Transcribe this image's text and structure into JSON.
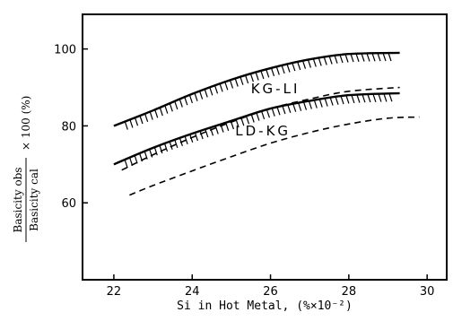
{
  "chart_data": {
    "type": "line",
    "x_label": "Si in Hot Metal, (%×10⁻²)",
    "y_label": {
      "numerator": "Basicity obs",
      "denominator": "Basicity cal",
      "suffix": "× 100 (%)"
    },
    "x_ticks": [
      "22",
      "24",
      "26",
      "28",
      "30"
    ],
    "y_ticks": [
      "60",
      "80",
      "100"
    ],
    "xlim": [
      21.2,
      30.5
    ],
    "ylim": [
      40,
      109
    ],
    "grid": false,
    "annotations": [
      {
        "text": "KG-LI",
        "x": 25.5,
        "y": 88.5
      },
      {
        "text": "LD-KG",
        "x": 25.1,
        "y": 77.5
      }
    ],
    "series": [
      {
        "style": "solid-hatched",
        "x": [
          22,
          23,
          24,
          25,
          26,
          27,
          28,
          29.3
        ],
        "y": [
          80,
          84,
          88.3,
          92,
          95,
          97.3,
          98.7,
          99
        ]
      },
      {
        "style": "solid-hatched",
        "x": [
          22,
          23,
          24,
          25,
          26,
          27,
          28,
          29.3
        ],
        "y": [
          70,
          74.3,
          78,
          81.3,
          84.5,
          86.5,
          88,
          88.5
        ]
      },
      {
        "style": "dashed",
        "x": [
          22.2,
          23,
          24,
          25,
          26,
          27,
          28,
          29.3
        ],
        "y": [
          68.5,
          72.5,
          77,
          81,
          84.5,
          87,
          89,
          90
        ]
      },
      {
        "style": "dashed",
        "x": [
          22.4,
          23,
          24,
          25,
          26,
          27,
          28,
          29,
          29.8
        ],
        "y": [
          62,
          64.5,
          68.3,
          72,
          75.5,
          78.3,
          80.5,
          82,
          82.3
        ]
      }
    ]
  }
}
